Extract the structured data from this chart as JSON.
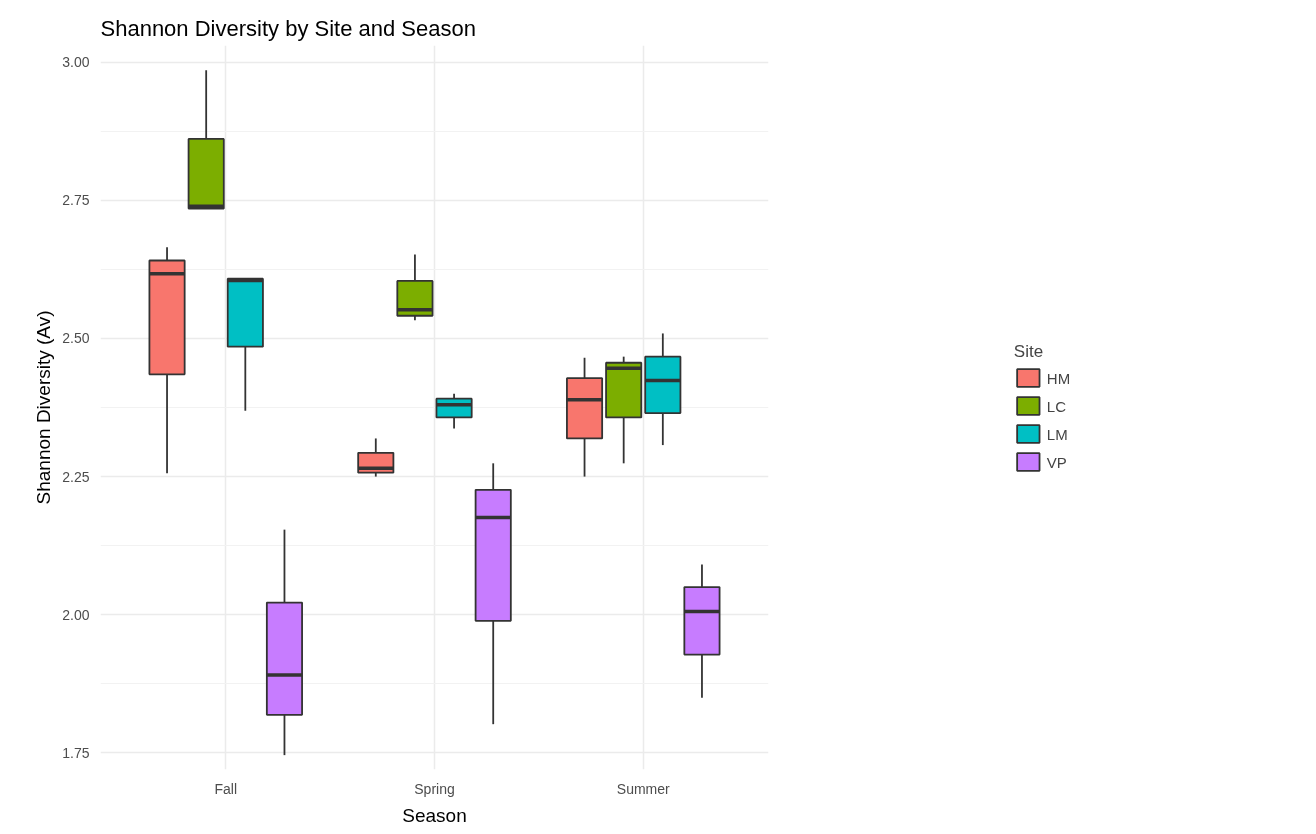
{
  "chart_data": {
    "type": "box",
    "title": "Shannon Diversity by Site and Season",
    "xlabel": "Season",
    "ylabel": "Shannon Diversity (Av)",
    "legend_title": "Site",
    "categories": [
      "Fall",
      "Spring",
      "Summer"
    ],
    "ylim": [
      1.72,
      3.03
    ],
    "yticks": [
      {
        "value": 1.75,
        "label": "1.75"
      },
      {
        "value": 2.0,
        "label": "2.00"
      },
      {
        "value": 2.25,
        "label": "2.25"
      },
      {
        "value": 2.5,
        "label": "2.50"
      },
      {
        "value": 2.75,
        "label": "2.75"
      },
      {
        "value": 3.0,
        "label": "3.00"
      }
    ],
    "grid": true,
    "legend": "right",
    "series": [
      {
        "name": "HM",
        "color": "#f8766d",
        "boxes": [
          {
            "low": 2.256,
            "q1": 2.435,
            "median": 2.617,
            "q3": 2.641,
            "high": 2.665
          },
          {
            "low": 2.25,
            "q1": 2.257,
            "median": 2.265,
            "q3": 2.293,
            "high": 2.319
          },
          {
            "low": 2.25,
            "q1": 2.319,
            "median": 2.389,
            "q3": 2.428,
            "high": 2.465
          }
        ]
      },
      {
        "name": "LC",
        "color": "#7cae00",
        "boxes": [
          {
            "low": 2.735,
            "q1": 2.735,
            "median": 2.739,
            "q3": 2.861,
            "high": 2.985
          },
          {
            "low": 2.533,
            "q1": 2.541,
            "median": 2.552,
            "q3": 2.604,
            "high": 2.652
          },
          {
            "low": 2.274,
            "q1": 2.357,
            "median": 2.446,
            "q3": 2.456,
            "high": 2.467
          }
        ]
      },
      {
        "name": "LM",
        "color": "#00bfc4",
        "boxes": [
          {
            "low": 2.369,
            "q1": 2.485,
            "median": 2.605,
            "q3": 2.608,
            "high": 2.608
          },
          {
            "low": 2.337,
            "q1": 2.357,
            "median": 2.38,
            "q3": 2.391,
            "high": 2.4
          },
          {
            "low": 2.307,
            "q1": 2.365,
            "median": 2.424,
            "q3": 2.467,
            "high": 2.509
          }
        ]
      },
      {
        "name": "VP",
        "color": "#c77cff",
        "boxes": [
          {
            "low": 1.746,
            "q1": 1.819,
            "median": 1.891,
            "q3": 2.022,
            "high": 2.154
          },
          {
            "low": 1.802,
            "q1": 1.989,
            "median": 2.176,
            "q3": 2.226,
            "high": 2.274
          },
          {
            "low": 1.85,
            "q1": 1.928,
            "median": 2.006,
            "q3": 2.05,
            "high": 2.091
          }
        ]
      }
    ]
  }
}
